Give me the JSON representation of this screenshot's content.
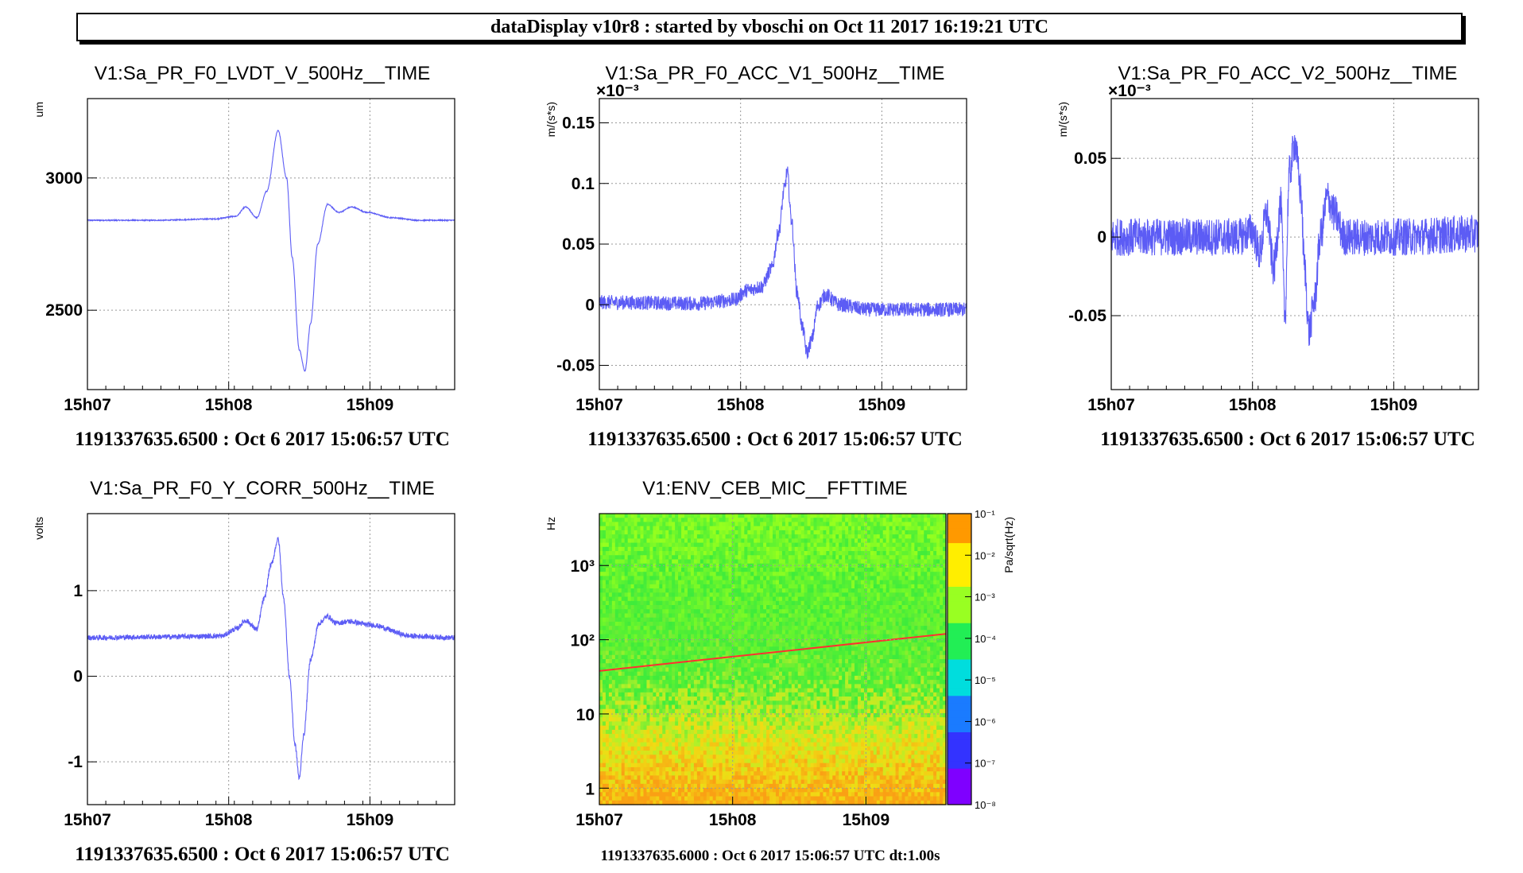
{
  "banner": {
    "text": "dataDisplay v10r8 : started by vboschi on Oct 11 2017 16:19:21 UTC"
  },
  "colors": {
    "trace": "#5c5cf5",
    "spectrogram_line": "#ff3030"
  },
  "chart_data": [
    {
      "id": "lvdt",
      "type": "line",
      "title": "V1:Sa_PR_F0_LVDT_V_500Hz__TIME",
      "ylabel": "um",
      "xlabel": "",
      "x_range": [
        0,
        2.6
      ],
      "x_ticks": [
        {
          "value": 0,
          "label": "15h07"
        },
        {
          "value": 1,
          "label": "15h08"
        },
        {
          "value": 2,
          "label": "15h09"
        }
      ],
      "ylim": [
        2200,
        3300
      ],
      "y_ticks": [
        {
          "value": 2500,
          "label": "2500"
        },
        {
          "value": 3000,
          "label": "3000"
        }
      ],
      "y_exponent": "",
      "grid": true,
      "noise": 2,
      "series": [
        {
          "points": [
            [
              0,
              2840
            ],
            [
              0.5,
              2840
            ],
            [
              0.9,
              2845
            ],
            [
              1.05,
              2855
            ],
            [
              1.12,
              2890
            ],
            [
              1.2,
              2850
            ],
            [
              1.27,
              2950
            ],
            [
              1.35,
              3180
            ],
            [
              1.41,
              3000
            ],
            [
              1.45,
              2700
            ],
            [
              1.5,
              2350
            ],
            [
              1.54,
              2270
            ],
            [
              1.58,
              2450
            ],
            [
              1.63,
              2750
            ],
            [
              1.7,
              2900
            ],
            [
              1.78,
              2870
            ],
            [
              1.87,
              2890
            ],
            [
              1.98,
              2870
            ],
            [
              2.15,
              2850
            ],
            [
              2.35,
              2840
            ],
            [
              2.6,
              2840
            ]
          ]
        }
      ],
      "timestamp": "1191337635.6500 : Oct  6 2017 15:06:57 UTC"
    },
    {
      "id": "acc-v1",
      "type": "line",
      "title": "V1:Sa_PR_F0_ACC_V1_500Hz__TIME",
      "ylabel": "m/(s*s)",
      "xlabel": "",
      "x_range": [
        0,
        2.6
      ],
      "x_ticks": [
        {
          "value": 0,
          "label": "15h07"
        },
        {
          "value": 1,
          "label": "15h08"
        },
        {
          "value": 2,
          "label": "15h09"
        }
      ],
      "ylim": [
        -0.07,
        0.17
      ],
      "y_ticks": [
        {
          "value": -0.05,
          "label": "-0.05"
        },
        {
          "value": 0,
          "label": "0"
        },
        {
          "value": 0.05,
          "label": "0.05"
        },
        {
          "value": 0.1,
          "label": "0.1"
        },
        {
          "value": 0.15,
          "label": "0.15"
        }
      ],
      "y_exponent": "×10⁻³",
      "grid": true,
      "noise": 0.006,
      "series": [
        {
          "points": [
            [
              0,
              0.002
            ],
            [
              0.7,
              0.001
            ],
            [
              0.95,
              0.004
            ],
            [
              1.05,
              0.012
            ],
            [
              1.15,
              0.015
            ],
            [
              1.22,
              0.03
            ],
            [
              1.27,
              0.06
            ],
            [
              1.31,
              0.095
            ],
            [
              1.33,
              0.11
            ],
            [
              1.36,
              0.07
            ],
            [
              1.4,
              0.01
            ],
            [
              1.44,
              -0.02
            ],
            [
              1.47,
              -0.04
            ],
            [
              1.5,
              -0.03
            ],
            [
              1.55,
              0.0
            ],
            [
              1.6,
              0.008
            ],
            [
              1.7,
              0.0
            ],
            [
              1.9,
              -0.004
            ],
            [
              2.3,
              -0.004
            ],
            [
              2.6,
              -0.004
            ]
          ]
        }
      ],
      "timestamp": "1191337635.6500 : Oct  6 2017 15:06:57 UTC"
    },
    {
      "id": "acc-v2",
      "type": "line",
      "title": "V1:Sa_PR_F0_ACC_V2_500Hz__TIME",
      "ylabel": "m/(s*s)",
      "xlabel": "",
      "x_range": [
        0,
        2.6
      ],
      "x_ticks": [
        {
          "value": 0,
          "label": "15h07"
        },
        {
          "value": 1,
          "label": "15h08"
        },
        {
          "value": 2,
          "label": "15h09"
        }
      ],
      "ylim": [
        -0.097,
        0.088
      ],
      "y_ticks": [
        {
          "value": -0.05,
          "label": "-0.05"
        },
        {
          "value": 0,
          "label": "0"
        },
        {
          "value": 0.05,
          "label": "0.05"
        }
      ],
      "y_exponent": "×10⁻³",
      "grid": true,
      "noise": 0.012,
      "series": [
        {
          "points": [
            [
              0,
              0.0
            ],
            [
              0.9,
              0.0
            ],
            [
              1.0,
              0.004
            ],
            [
              1.05,
              -0.01
            ],
            [
              1.1,
              0.015
            ],
            [
              1.15,
              -0.02
            ],
            [
              1.2,
              0.02
            ],
            [
              1.23,
              -0.05
            ],
            [
              1.26,
              0.04
            ],
            [
              1.3,
              0.06
            ],
            [
              1.34,
              0.03
            ],
            [
              1.37,
              -0.02
            ],
            [
              1.4,
              -0.06
            ],
            [
              1.44,
              -0.04
            ],
            [
              1.48,
              0.0
            ],
            [
              1.53,
              0.025
            ],
            [
              1.58,
              0.015
            ],
            [
              1.65,
              0.0
            ],
            [
              2.0,
              0.0
            ],
            [
              2.6,
              0.002
            ]
          ]
        }
      ],
      "timestamp": "1191337635.6500 : Oct  6 2017 15:06:57 UTC"
    },
    {
      "id": "ycorr",
      "type": "line",
      "title": "V1:Sa_PR_F0_Y_CORR_500Hz__TIME",
      "ylabel": "volts",
      "xlabel": "",
      "x_range": [
        0,
        2.6
      ],
      "x_ticks": [
        {
          "value": 0,
          "label": "15h07"
        },
        {
          "value": 1,
          "label": "15h08"
        },
        {
          "value": 2,
          "label": "15h09"
        }
      ],
      "ylim": [
        -1.5,
        1.9
      ],
      "y_ticks": [
        {
          "value": -1,
          "label": "-1"
        },
        {
          "value": 0,
          "label": "0"
        },
        {
          "value": 1,
          "label": "1"
        }
      ],
      "y_exponent": "",
      "grid": true,
      "noise": 0.03,
      "series": [
        {
          "points": [
            [
              0,
              0.45
            ],
            [
              0.5,
              0.46
            ],
            [
              0.95,
              0.47
            ],
            [
              1.05,
              0.55
            ],
            [
              1.12,
              0.65
            ],
            [
              1.2,
              0.55
            ],
            [
              1.25,
              0.9
            ],
            [
              1.3,
              1.3
            ],
            [
              1.35,
              1.6
            ],
            [
              1.39,
              0.9
            ],
            [
              1.43,
              0.0
            ],
            [
              1.47,
              -0.8
            ],
            [
              1.5,
              -1.2
            ],
            [
              1.53,
              -0.7
            ],
            [
              1.58,
              0.2
            ],
            [
              1.64,
              0.62
            ],
            [
              1.7,
              0.7
            ],
            [
              1.76,
              0.62
            ],
            [
              1.85,
              0.64
            ],
            [
              2.0,
              0.6
            ],
            [
              2.3,
              0.47
            ],
            [
              2.6,
              0.45
            ]
          ]
        }
      ],
      "timestamp": "1191337635.6500 : Oct  6 2017 15:06:57 UTC"
    },
    {
      "id": "spectrogram",
      "type": "heatmap",
      "title": "V1:ENV_CEB_MIC__FFTTIME",
      "ylabel": "Hz",
      "xlabel": "",
      "x_range": [
        0,
        2.6
      ],
      "x_ticks": [
        {
          "value": 0,
          "label": "15h07"
        },
        {
          "value": 1,
          "label": "15h08"
        },
        {
          "value": 2,
          "label": "15h09"
        }
      ],
      "y_scale": "log",
      "ylim": [
        0.6,
        5000
      ],
      "y_ticks": [
        {
          "value": 1,
          "label": "1"
        },
        {
          "value": 10,
          "label": "10"
        },
        {
          "value": 100,
          "label": "10²"
        },
        {
          "value": 1000,
          "label": "10³"
        }
      ],
      "colorbar": {
        "label": "Pa/sqrt(Hz)",
        "scale": "log",
        "range": [
          1e-08,
          0.1
        ],
        "ticks": [
          "10⁻⁸",
          "10⁻⁷",
          "10⁻⁶",
          "10⁻⁵",
          "10⁻⁴",
          "10⁻³",
          "10⁻²",
          "10⁻¹"
        ]
      },
      "line_feature": {
        "x_start": 0,
        "y_start": 38,
        "x_end": 2.6,
        "y_end": 120
      },
      "timestamp": "1191337635.6000 : Oct  6 2017 15:06:57 UTC dt:1.00s"
    }
  ]
}
